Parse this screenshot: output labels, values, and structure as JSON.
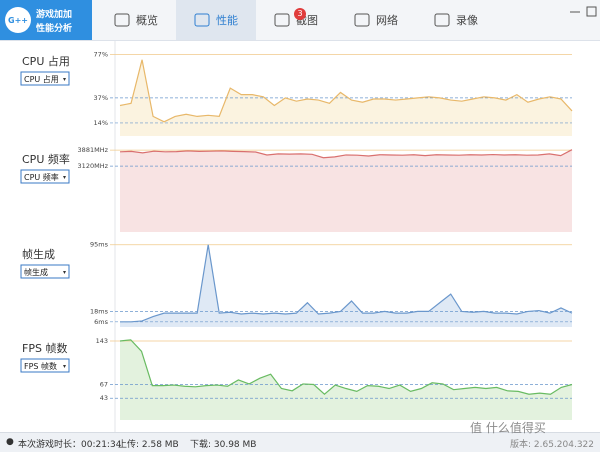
{
  "header": {
    "logo_line1": "游戏加加",
    "logo_line2": "性能分析",
    "logo_mark": "G++"
  },
  "tabs": [
    {
      "label": "概览"
    },
    {
      "label": "性能",
      "active": true
    },
    {
      "label": "截图",
      "badge": 3
    },
    {
      "label": "网络"
    },
    {
      "label": "录像"
    }
  ],
  "charts": [
    {
      "type": "area",
      "title": "CPU 占用",
      "dropdown": "CPU 占用",
      "color": "#e8b86a",
      "fill": "#fbf3e0",
      "ylim": [
        2,
        81
      ],
      "yticks": [
        {
          "value": 14,
          "label": "14%"
        },
        {
          "value": 37,
          "label": "37%"
        },
        {
          "value": 77,
          "label": "77%"
        }
      ],
      "values": [
        30,
        32,
        72,
        20,
        15,
        20,
        22,
        20,
        21,
        20,
        46,
        40,
        40,
        38,
        30,
        37,
        34,
        36,
        35,
        32,
        42,
        35,
        33,
        36,
        36,
        35,
        36,
        37,
        38,
        37,
        35,
        34,
        36,
        38,
        37,
        35,
        40,
        33,
        36,
        38,
        36,
        25
      ]
    },
    {
      "type": "area",
      "title": "CPU 频率",
      "dropdown": "CPU 频率",
      "color": "#d9706f",
      "fill": "#f8e3e3",
      "ylim": [
        0,
        3980
      ],
      "yticks": [
        {
          "value": 3120,
          "label": "3120MHz"
        },
        {
          "value": 3881,
          "label": "3881MHz"
        }
      ],
      "values": [
        3800,
        3820,
        3750,
        3830,
        3800,
        3810,
        3840,
        3820,
        3830,
        3840,
        3820,
        3810,
        3790,
        3650,
        3700,
        3690,
        3700,
        3680,
        3520,
        3560,
        3650,
        3640,
        3600,
        3660,
        3650,
        3640,
        3660,
        3620,
        3660,
        3650,
        3640,
        3660,
        3650,
        3670,
        3650,
        3660,
        3640,
        3650,
        3700,
        3620,
        3900
      ]
    },
    {
      "type": "area",
      "title": "帧生成",
      "dropdown": "帧生成",
      "color": "#6a97cc",
      "fill": "#dfe9f5",
      "ylim": [
        0,
        97
      ],
      "yticks": [
        {
          "value": 6,
          "label": "6ms"
        },
        {
          "value": 18,
          "label": "18ms"
        },
        {
          "value": 95,
          "label": "95ms"
        }
      ],
      "values": [
        6,
        6,
        7,
        12,
        16,
        16,
        16,
        16,
        95,
        16,
        17,
        15,
        16,
        15,
        16,
        15,
        16,
        28,
        15,
        16,
        18,
        30,
        16,
        16,
        18,
        16,
        16,
        18,
        18,
        28,
        38,
        18,
        17,
        18,
        16,
        16,
        15,
        18,
        19,
        16,
        22,
        16
      ]
    },
    {
      "type": "area",
      "title": "FPS 帧数",
      "dropdown": "FPS 帧数",
      "color": "#69bb62",
      "fill": "#e3f2de",
      "ylim": [
        5,
        150
      ],
      "yticks": [
        43,
        67,
        143
      ],
      "values": [
        143,
        145,
        125,
        65,
        65,
        66,
        64,
        63,
        65,
        66,
        64,
        75,
        68,
        78,
        85,
        60,
        56,
        68,
        67,
        50,
        66,
        60,
        55,
        65,
        64,
        60,
        66,
        55,
        60,
        70,
        68,
        58,
        60,
        62,
        60,
        62,
        56,
        55,
        50,
        52,
        50,
        62,
        67
      ]
    }
  ],
  "status": {
    "duration": "本次游戏时长：00:21:34",
    "upload": "上传: 2.58 MB",
    "download": "下载: 30.98 MB",
    "version": "版本: 2.65.204.322",
    "watermark": "值 什么值得买"
  }
}
